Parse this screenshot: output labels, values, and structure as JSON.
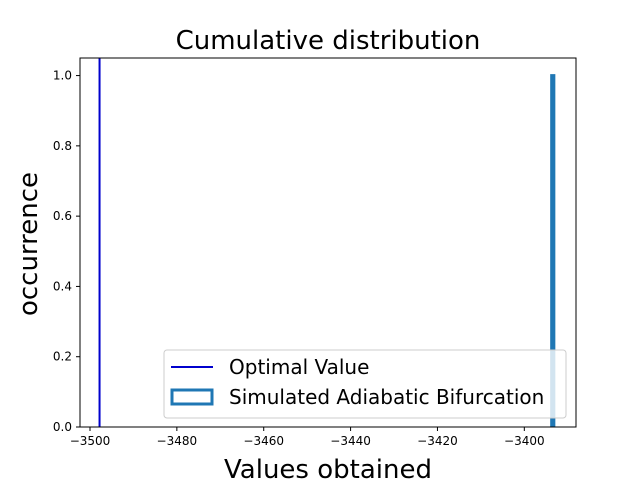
{
  "chart_data": {
    "type": "step",
    "title": "Cumulative distribution",
    "xlabel": "Values obtained",
    "ylabel": "occurrence",
    "xlim": [
      -3502.3,
      -3388.1
    ],
    "ylim": [
      0,
      1.05
    ],
    "x_ticks": [
      -3500,
      -3480,
      -3460,
      -3440,
      -3420,
      -3400
    ],
    "x_tick_labels": [
      "−3500",
      "−3480",
      "−3460",
      "−3440",
      "−3420",
      "−3400"
    ],
    "y_ticks": [
      0.0,
      0.2,
      0.4,
      0.6,
      0.8,
      1.0
    ],
    "y_tick_labels": [
      "0.0",
      "0.2",
      "0.4",
      "0.6",
      "0.8",
      "1.0"
    ],
    "grid": false,
    "legend_position": "lower-right",
    "optimal_value": {
      "name": "Optimal Value",
      "x": -3497.8,
      "color": "#0000cd"
    },
    "series": [
      {
        "name": "Simulated Adiabatic Bifurcation",
        "color": "#1f77b4",
        "x": [
          -3393.7,
          -3393.2
        ],
        "cumulative": [
          1.0,
          1.0
        ]
      }
    ]
  }
}
